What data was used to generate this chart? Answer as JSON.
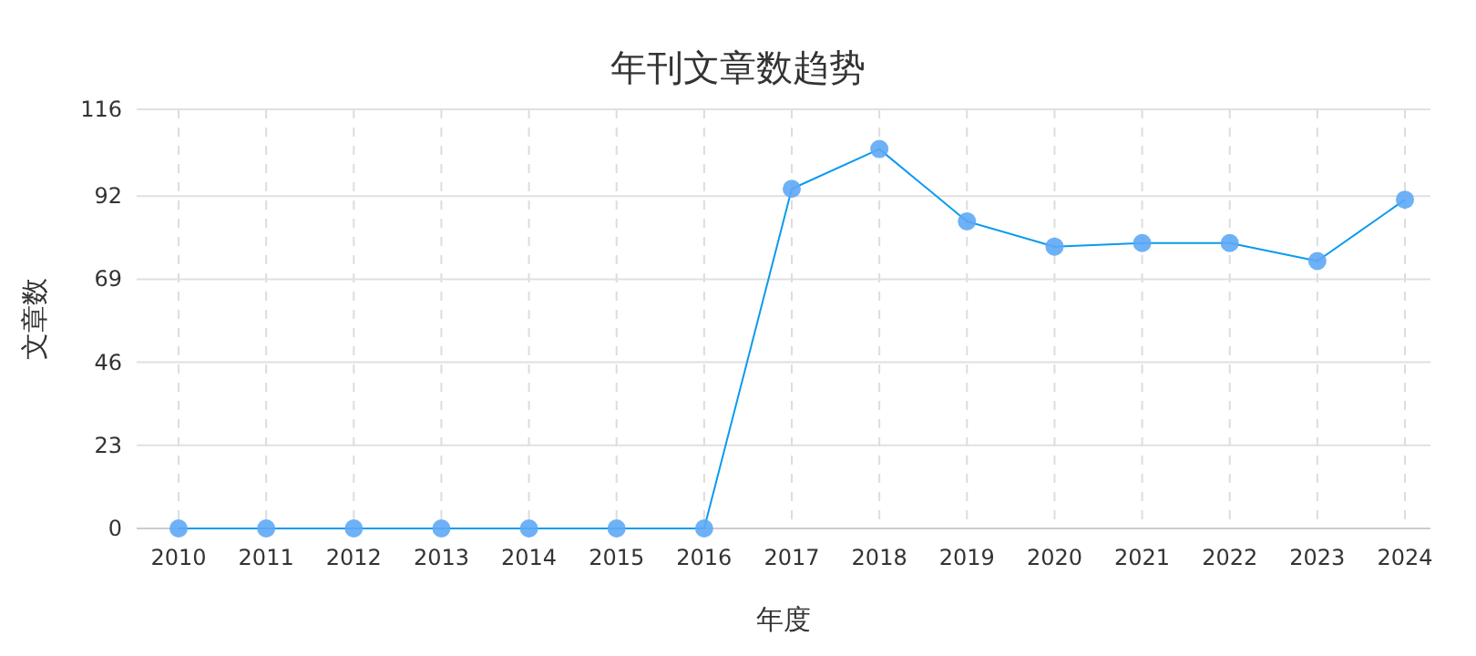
{
  "chart_data": {
    "type": "line",
    "title": "年刊文章数趋势",
    "xlabel": "年度",
    "ylabel": "文章数",
    "categories": [
      "2010",
      "2011",
      "2012",
      "2013",
      "2014",
      "2015",
      "2016",
      "2017",
      "2018",
      "2019",
      "2020",
      "2021",
      "2022",
      "2023",
      "2024"
    ],
    "series": [
      {
        "color": "#0a9af0",
        "values": [
          0,
          0,
          0,
          0,
          0,
          0,
          0,
          94,
          105,
          85,
          78,
          79,
          79,
          74,
          91
        ]
      }
    ],
    "ylim": [
      0,
      116
    ],
    "yticks": [
      0,
      23,
      46,
      69,
      92,
      116
    ],
    "grid": true,
    "marker": "circle",
    "line_style": "solid"
  }
}
